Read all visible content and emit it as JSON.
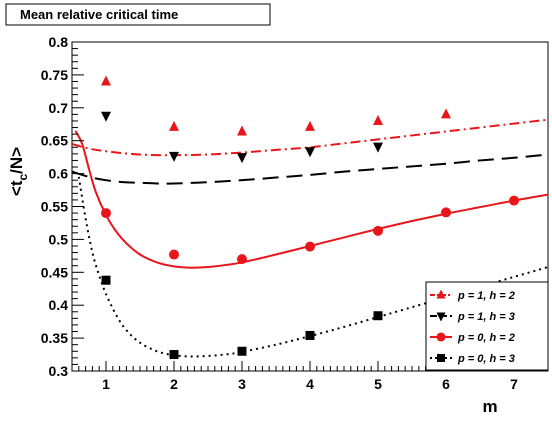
{
  "chart_data": {
    "type": "scatter",
    "title": "Mean relative critical time",
    "xlabel": "m",
    "ylabel_main": "<t",
    "ylabel_sub": "c",
    "ylabel_rest": "/N>",
    "xlim": [
      0.5,
      7.5
    ],
    "ylim": [
      0.3,
      0.8
    ],
    "x_ticks": [
      "1",
      "2",
      "3",
      "4",
      "5",
      "6",
      "7"
    ],
    "y_ticks": [
      "0.3",
      "0.35",
      "0.4",
      "0.45",
      "0.5",
      "0.55",
      "0.6",
      "0.65",
      "0.7",
      "0.75",
      "0.8"
    ],
    "grid": false,
    "legend_position": "bottom-right",
    "series": [
      {
        "name": "p = 1, h = 2",
        "marker": "triangle-up",
        "line_style": "dash-dot",
        "color": "#e8161a",
        "x": [
          1,
          2,
          3,
          4,
          5,
          6
        ],
        "y": [
          0.74,
          0.671,
          0.664,
          0.671,
          0.68,
          0.69
        ],
        "fit_x": [
          0.5,
          0.75,
          1,
          1.25,
          1.5,
          1.75,
          2,
          2.5,
          3,
          3.5,
          4,
          4.5,
          5,
          5.5,
          6,
          6.5,
          7,
          7.5
        ],
        "fit_y": [
          0.645,
          0.638,
          0.634,
          0.631,
          0.629,
          0.628,
          0.628,
          0.629,
          0.632,
          0.636,
          0.64,
          0.646,
          0.652,
          0.658,
          0.664,
          0.67,
          0.676,
          0.682
        ]
      },
      {
        "name": "p = 1, h = 3",
        "marker": "triangle-down",
        "line_style": "long-dash",
        "color": "#000000",
        "x": [
          1,
          2,
          3,
          4,
          5
        ],
        "y": [
          0.688,
          0.627,
          0.625,
          0.634,
          0.641
        ],
        "fit_x": [
          0.5,
          0.75,
          1,
          1.25,
          1.5,
          1.75,
          2,
          2.5,
          3,
          3.5,
          4,
          4.5,
          5,
          5.5,
          6,
          6.5,
          7,
          7.5
        ],
        "fit_y": [
          0.603,
          0.595,
          0.59,
          0.587,
          0.586,
          0.585,
          0.585,
          0.587,
          0.59,
          0.594,
          0.598,
          0.603,
          0.607,
          0.611,
          0.615,
          0.62,
          0.624,
          0.629
        ]
      },
      {
        "name": "p = 0, h = 2",
        "marker": "circle",
        "line_style": "solid",
        "color": "#e8161a",
        "x": [
          1,
          2,
          3,
          4,
          5,
          6,
          7
        ],
        "y": [
          0.54,
          0.477,
          0.47,
          0.489,
          0.513,
          0.541,
          0.559
        ],
        "fit_x": [
          0.55,
          0.65,
          0.75,
          0.85,
          1,
          1.15,
          1.3,
          1.5,
          1.75,
          2,
          2.25,
          2.5,
          2.75,
          3,
          3.5,
          4,
          4.5,
          5,
          5.5,
          6,
          6.5,
          7,
          7.5
        ],
        "fit_y": [
          0.665,
          0.645,
          0.607,
          0.572,
          0.537,
          0.512,
          0.494,
          0.477,
          0.465,
          0.459,
          0.457,
          0.458,
          0.461,
          0.465,
          0.477,
          0.49,
          0.503,
          0.516,
          0.528,
          0.539,
          0.549,
          0.559,
          0.568
        ]
      },
      {
        "name": "p = 0, h = 3",
        "marker": "square",
        "line_style": "dotted",
        "color": "#000000",
        "x": [
          1,
          2,
          3,
          4,
          5
        ],
        "y": [
          0.438,
          0.325,
          0.33,
          0.354,
          0.384
        ],
        "fit_x": [
          0.6,
          0.7,
          0.8,
          0.9,
          1,
          1.15,
          1.3,
          1.5,
          1.75,
          2,
          2.25,
          2.5,
          2.75,
          3,
          3.5,
          4,
          4.5,
          5,
          5.5,
          6,
          6.5,
          7,
          7.5
        ],
        "fit_y": [
          0.595,
          0.532,
          0.48,
          0.445,
          0.417,
          0.385,
          0.362,
          0.343,
          0.33,
          0.324,
          0.322,
          0.323,
          0.325,
          0.329,
          0.34,
          0.353,
          0.367,
          0.382,
          0.397,
          0.412,
          0.428,
          0.443,
          0.458
        ]
      }
    ]
  }
}
